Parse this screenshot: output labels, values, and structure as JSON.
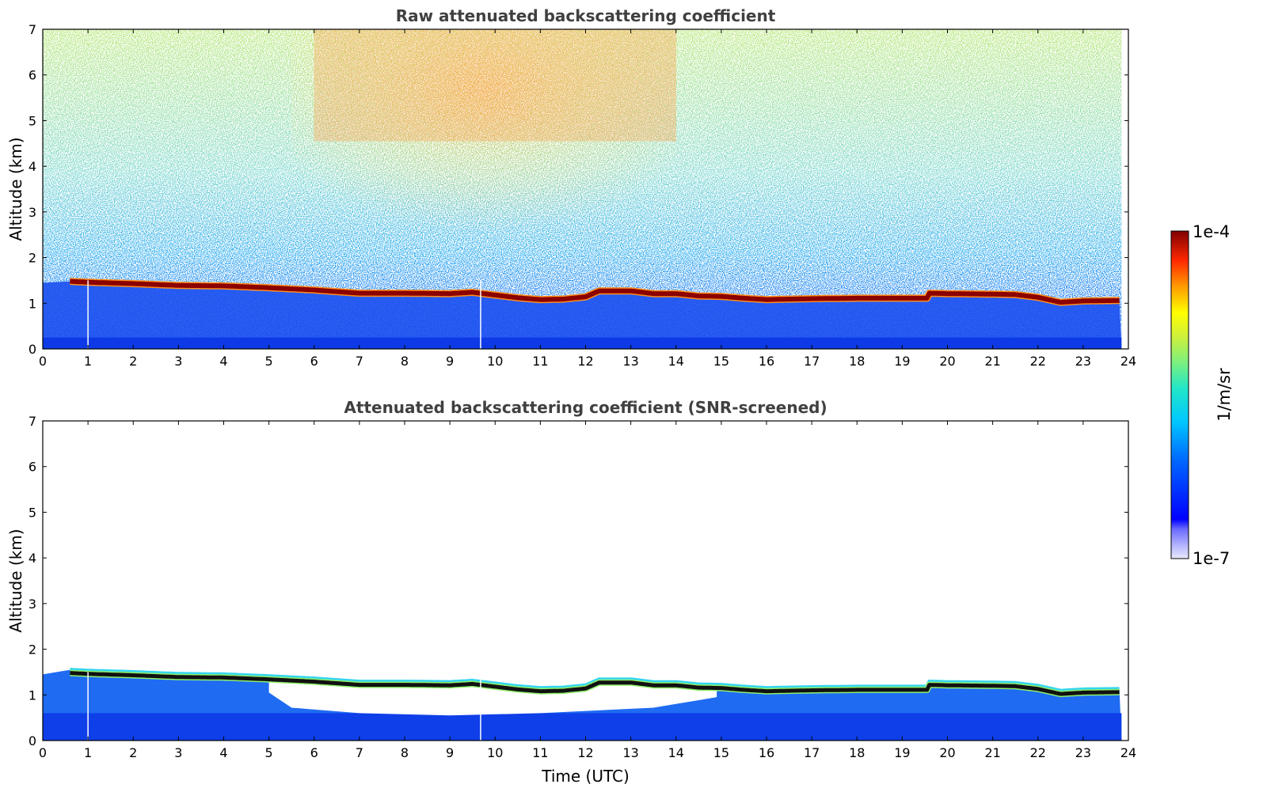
{
  "chart_data": [
    {
      "type": "heatmap",
      "title": "Raw attenuated backscattering coefficient",
      "xlabel": "",
      "ylabel": "Altitude (km)",
      "xlim": [
        0,
        24
      ],
      "ylim": [
        0,
        7
      ],
      "xticks": [
        "0",
        "1",
        "2",
        "3",
        "4",
        "5",
        "6",
        "7",
        "8",
        "9",
        "10",
        "11",
        "12",
        "13",
        "14",
        "15",
        "16",
        "17",
        "18",
        "19",
        "20",
        "21",
        "22",
        "23",
        "24"
      ],
      "yticks": [
        "0",
        "1",
        "2",
        "3",
        "4",
        "5",
        "6",
        "7"
      ],
      "cloud_layer": {
        "time": [
          0.6,
          1,
          2,
          3,
          4,
          5,
          6,
          7,
          8,
          9,
          9.5,
          10,
          10.5,
          11,
          11.5,
          12,
          12.3,
          13,
          13.5,
          14,
          14.5,
          15,
          15.5,
          16,
          17,
          18,
          19,
          19.55,
          19.6,
          20,
          21,
          21.5,
          22,
          22.5,
          23,
          23.8
        ],
        "altitude_km": [
          1.48,
          1.46,
          1.43,
          1.39,
          1.38,
          1.34,
          1.29,
          1.22,
          1.22,
          1.21,
          1.24,
          1.18,
          1.12,
          1.08,
          1.09,
          1.14,
          1.27,
          1.27,
          1.21,
          1.21,
          1.16,
          1.15,
          1.11,
          1.08,
          1.1,
          1.11,
          1.11,
          1.11,
          1.22,
          1.21,
          1.2,
          1.19,
          1.13,
          1.02,
          1.05,
          1.06
        ]
      }
    },
    {
      "type": "heatmap",
      "title": "Attenuated backscattering coefficient (SNR-screened)",
      "xlabel": "Time (UTC)",
      "ylabel": "Altitude (km)",
      "xlim": [
        0,
        24
      ],
      "ylim": [
        0,
        7
      ],
      "xticks": [
        "0",
        "1",
        "2",
        "3",
        "4",
        "5",
        "6",
        "7",
        "8",
        "9",
        "10",
        "11",
        "12",
        "13",
        "14",
        "15",
        "16",
        "17",
        "18",
        "19",
        "20",
        "21",
        "22",
        "23",
        "24"
      ],
      "yticks": [
        "0",
        "1",
        "2",
        "3",
        "4",
        "5",
        "6",
        "7"
      ]
    }
  ],
  "colorbar": {
    "label": "1/m/sr",
    "max_label": "1e-4",
    "min_label": "1e-7",
    "scale": "log",
    "range": [
      1e-07,
      0.0001
    ]
  }
}
